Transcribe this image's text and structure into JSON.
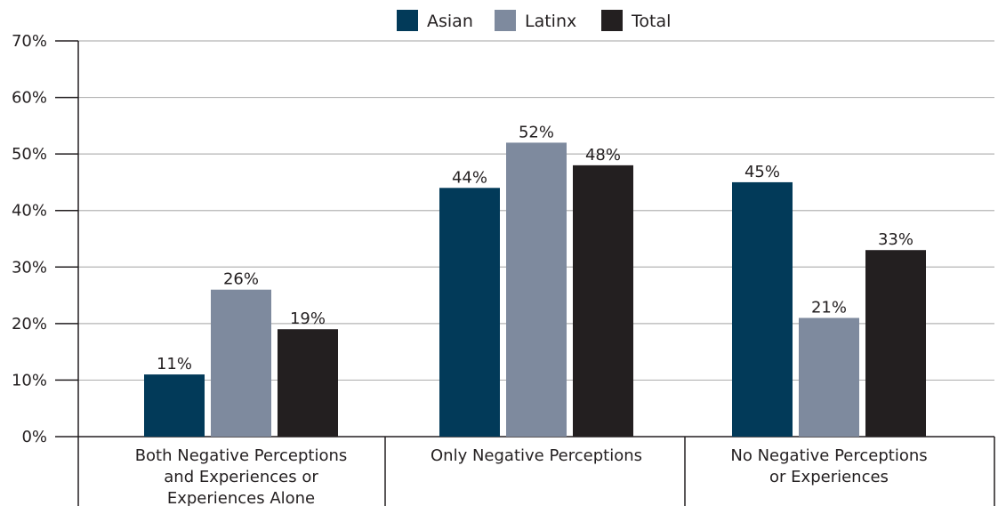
{
  "chart_data": {
    "type": "bar",
    "title": "",
    "xlabel": "",
    "ylabel": "",
    "ylim": [
      0,
      70
    ],
    "yticks": [
      0,
      10,
      20,
      30,
      40,
      50,
      60,
      70
    ],
    "ytick_suffix": "%",
    "grid": true,
    "legend_position": "top-center",
    "categories": [
      [
        "Both Negative Perceptions",
        "and Experiences or",
        "Experiences Alone"
      ],
      [
        "Only Negative Perceptions"
      ],
      [
        "No Negative Perceptions",
        "or Experiences"
      ]
    ],
    "series": [
      {
        "name": "Asian",
        "color": "#023a59",
        "values": [
          11,
          44,
          45
        ]
      },
      {
        "name": "Latinx",
        "color": "#7e8a9e",
        "values": [
          26,
          52,
          21
        ]
      },
      {
        "name": "Total",
        "color": "#231f20",
        "values": [
          19,
          48,
          33
        ]
      }
    ]
  }
}
